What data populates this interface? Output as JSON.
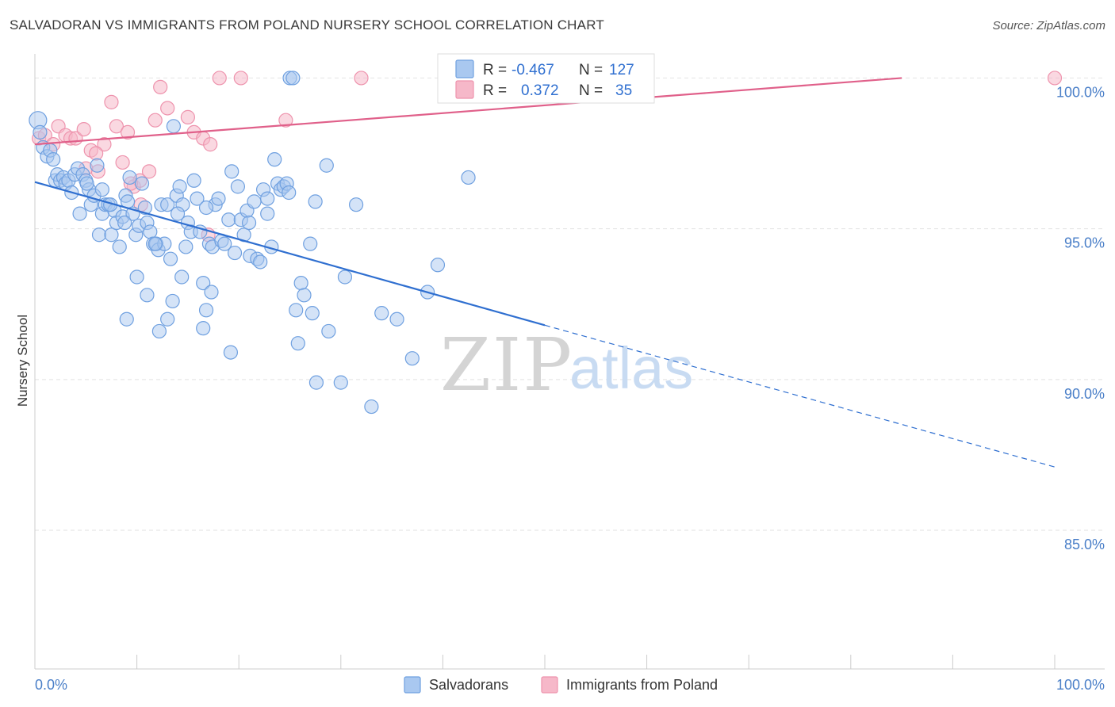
{
  "title": "SALVADORAN VS IMMIGRANTS FROM POLAND NURSERY SCHOOL CORRELATION CHART",
  "source": "Source: ZipAtlas.com",
  "watermark": {
    "zip": "ZIP",
    "atlas": "atlas"
  },
  "colors": {
    "blue_fill": "#a9c8f0",
    "blue_stroke": "#6fa0e0",
    "blue_line": "#2f6fd0",
    "pink_fill": "#f6b8c9",
    "pink_stroke": "#ee93ad",
    "pink_line": "#e0608a",
    "tick_label": "#4a7fc8",
    "grid": "#e2e2e2"
  },
  "chart_data": {
    "type": "scatter",
    "title": "SALVADORAN VS IMMIGRANTS FROM POLAND NURSERY SCHOOL CORRELATION CHART",
    "xlabel": "",
    "ylabel": "Nursery School",
    "xlim": [
      0,
      100
    ],
    "ylim": [
      80.4,
      100.8
    ],
    "x_tick_labels": [
      {
        "value": 0,
        "label": "0.0%"
      },
      {
        "value": 100,
        "label": "100.0%"
      }
    ],
    "y_ticks": [
      {
        "value": 100,
        "label": "100.0%"
      },
      {
        "value": 95,
        "label": "95.0%"
      },
      {
        "value": 90,
        "label": "90.0%"
      },
      {
        "value": 85,
        "label": "85.0%"
      }
    ],
    "legend": {
      "position": "top-center",
      "rows": [
        {
          "r_label": "R =",
          "r_value": "-0.467",
          "n_label": "N =",
          "n_value": "127"
        },
        {
          "r_label": "R =",
          "r_value": "0.372",
          "n_label": "N =",
          "n_value": "35"
        }
      ]
    },
    "series": [
      {
        "name": "Salvadorans",
        "trend": {
          "x_start": 0,
          "y_start": 96.55,
          "x_solid_end": 50,
          "y_solid_end": 91.8,
          "x_dash_end": 100,
          "y_dash_end": 87.1
        },
        "points": [
          [
            0.3,
            98.6
          ],
          [
            0.5,
            98.2
          ],
          [
            0.8,
            97.7
          ],
          [
            1.2,
            97.4
          ],
          [
            1.5,
            97.6
          ],
          [
            1.8,
            97.3
          ],
          [
            2.0,
            96.6
          ],
          [
            2.2,
            96.8
          ],
          [
            2.5,
            96.6
          ],
          [
            2.8,
            96.7
          ],
          [
            3.0,
            96.5
          ],
          [
            3.3,
            96.6
          ],
          [
            3.6,
            96.2
          ],
          [
            3.9,
            96.8
          ],
          [
            4.2,
            97.0
          ],
          [
            4.4,
            95.5
          ],
          [
            4.7,
            96.8
          ],
          [
            5.0,
            96.6
          ],
          [
            5.3,
            96.3
          ],
          [
            5.5,
            95.8
          ],
          [
            5.8,
            96.1
          ],
          [
            6.1,
            97.1
          ],
          [
            6.3,
            94.8
          ],
          [
            6.6,
            95.5
          ],
          [
            6.9,
            95.8
          ],
          [
            7.2,
            95.8
          ],
          [
            7.5,
            94.8
          ],
          [
            7.8,
            95.6
          ],
          [
            8.0,
            95.2
          ],
          [
            8.3,
            94.4
          ],
          [
            8.6,
            95.4
          ],
          [
            8.9,
            96.1
          ],
          [
            9.1,
            95.9
          ],
          [
            9.3,
            96.7
          ],
          [
            9.6,
            95.5
          ],
          [
            9.9,
            94.8
          ],
          [
            10.2,
            95.1
          ],
          [
            10.5,
            96.5
          ],
          [
            10.8,
            95.7
          ],
          [
            11.0,
            95.2
          ],
          [
            11.3,
            94.9
          ],
          [
            11.6,
            94.5
          ],
          [
            11.9,
            94.5
          ],
          [
            12.1,
            94.3
          ],
          [
            12.4,
            95.8
          ],
          [
            12.7,
            94.5
          ],
          [
            13.0,
            95.8
          ],
          [
            13.3,
            94.0
          ],
          [
            13.6,
            98.4
          ],
          [
            13.9,
            96.1
          ],
          [
            14.2,
            96.4
          ],
          [
            14.5,
            95.8
          ],
          [
            14.8,
            94.4
          ],
          [
            15.0,
            95.2
          ],
          [
            15.3,
            94.9
          ],
          [
            15.6,
            96.6
          ],
          [
            15.9,
            96.0
          ],
          [
            16.2,
            94.9
          ],
          [
            16.5,
            93.2
          ],
          [
            16.8,
            92.3
          ],
          [
            17.1,
            94.5
          ],
          [
            17.4,
            94.4
          ],
          [
            17.7,
            95.8
          ],
          [
            18.0,
            96.0
          ],
          [
            18.3,
            94.6
          ],
          [
            18.6,
            94.5
          ],
          [
            19.0,
            95.3
          ],
          [
            19.3,
            96.9
          ],
          [
            19.6,
            94.2
          ],
          [
            19.9,
            96.4
          ],
          [
            20.2,
            95.3
          ],
          [
            20.5,
            94.8
          ],
          [
            20.8,
            95.6
          ],
          [
            21.1,
            94.1
          ],
          [
            21.5,
            95.9
          ],
          [
            21.8,
            94.0
          ],
          [
            22.1,
            93.9
          ],
          [
            22.4,
            96.3
          ],
          [
            22.8,
            96.0
          ],
          [
            23.2,
            94.4
          ],
          [
            23.5,
            97.3
          ],
          [
            23.8,
            96.5
          ],
          [
            24.1,
            96.3
          ],
          [
            24.4,
            96.4
          ],
          [
            24.7,
            96.5
          ],
          [
            25.0,
            100.0
          ],
          [
            25.3,
            100.0
          ],
          [
            10.0,
            93.4
          ],
          [
            11.0,
            92.8
          ],
          [
            12.2,
            91.6
          ],
          [
            9.0,
            92.0
          ],
          [
            13.0,
            92.0
          ],
          [
            13.5,
            92.6
          ],
          [
            14.4,
            93.4
          ],
          [
            16.5,
            91.7
          ],
          [
            17.3,
            92.9
          ],
          [
            19.2,
            90.9
          ],
          [
            25.6,
            92.3
          ],
          [
            26.1,
            93.2
          ],
          [
            26.4,
            92.8
          ],
          [
            25.8,
            91.2
          ],
          [
            27.2,
            92.2
          ],
          [
            27.5,
            95.9
          ],
          [
            27.6,
            89.9
          ],
          [
            28.8,
            91.6
          ],
          [
            30.0,
            89.9
          ],
          [
            30.4,
            93.4
          ],
          [
            31.5,
            95.8
          ],
          [
            33.0,
            89.1
          ],
          [
            34.0,
            92.2
          ],
          [
            35.5,
            92.0
          ],
          [
            37.0,
            90.7
          ],
          [
            38.5,
            92.9
          ],
          [
            39.5,
            93.8
          ],
          [
            42.5,
            96.7
          ],
          [
            28.6,
            97.1
          ],
          [
            27.0,
            94.5
          ],
          [
            22.8,
            95.5
          ],
          [
            5.1,
            96.5
          ],
          [
            6.6,
            96.3
          ],
          [
            7.4,
            95.8
          ],
          [
            8.8,
            95.2
          ],
          [
            11.8,
            94.5
          ],
          [
            14.0,
            95.5
          ],
          [
            16.8,
            95.7
          ],
          [
            21.0,
            95.2
          ],
          [
            24.9,
            96.2
          ]
        ]
      },
      {
        "name": "Immigrants from Poland",
        "trend": {
          "x_start": 0,
          "y_start": 97.8,
          "x_end": 85,
          "y_end": 100.0
        },
        "points": [
          [
            0.4,
            98.0
          ],
          [
            1.0,
            98.1
          ],
          [
            1.8,
            97.8
          ],
          [
            2.3,
            98.4
          ],
          [
            3.0,
            98.1
          ],
          [
            3.5,
            98.0
          ],
          [
            4.0,
            98.0
          ],
          [
            4.8,
            98.3
          ],
          [
            5.5,
            97.6
          ],
          [
            6.2,
            96.9
          ],
          [
            6.8,
            97.8
          ],
          [
            7.5,
            99.2
          ],
          [
            8.0,
            98.4
          ],
          [
            8.6,
            97.2
          ],
          [
            9.1,
            98.2
          ],
          [
            9.7,
            96.4
          ],
          [
            10.3,
            96.6
          ],
          [
            10.4,
            95.8
          ],
          [
            11.2,
            96.9
          ],
          [
            11.8,
            98.6
          ],
          [
            12.3,
            99.7
          ],
          [
            13.0,
            99.0
          ],
          [
            15.0,
            98.7
          ],
          [
            15.6,
            98.2
          ],
          [
            16.5,
            98.0
          ],
          [
            17.2,
            97.8
          ],
          [
            17.0,
            94.8
          ],
          [
            18.1,
            100.0
          ],
          [
            20.2,
            100.0
          ],
          [
            24.6,
            98.6
          ],
          [
            32.0,
            100.0
          ],
          [
            100.0,
            100.0
          ],
          [
            5.0,
            97.0
          ],
          [
            6.0,
            97.5
          ],
          [
            9.4,
            96.5
          ]
        ]
      }
    ]
  },
  "bottom_legend": {
    "items": [
      {
        "label": "Salvadorans"
      },
      {
        "label": "Immigrants from Poland"
      }
    ]
  }
}
